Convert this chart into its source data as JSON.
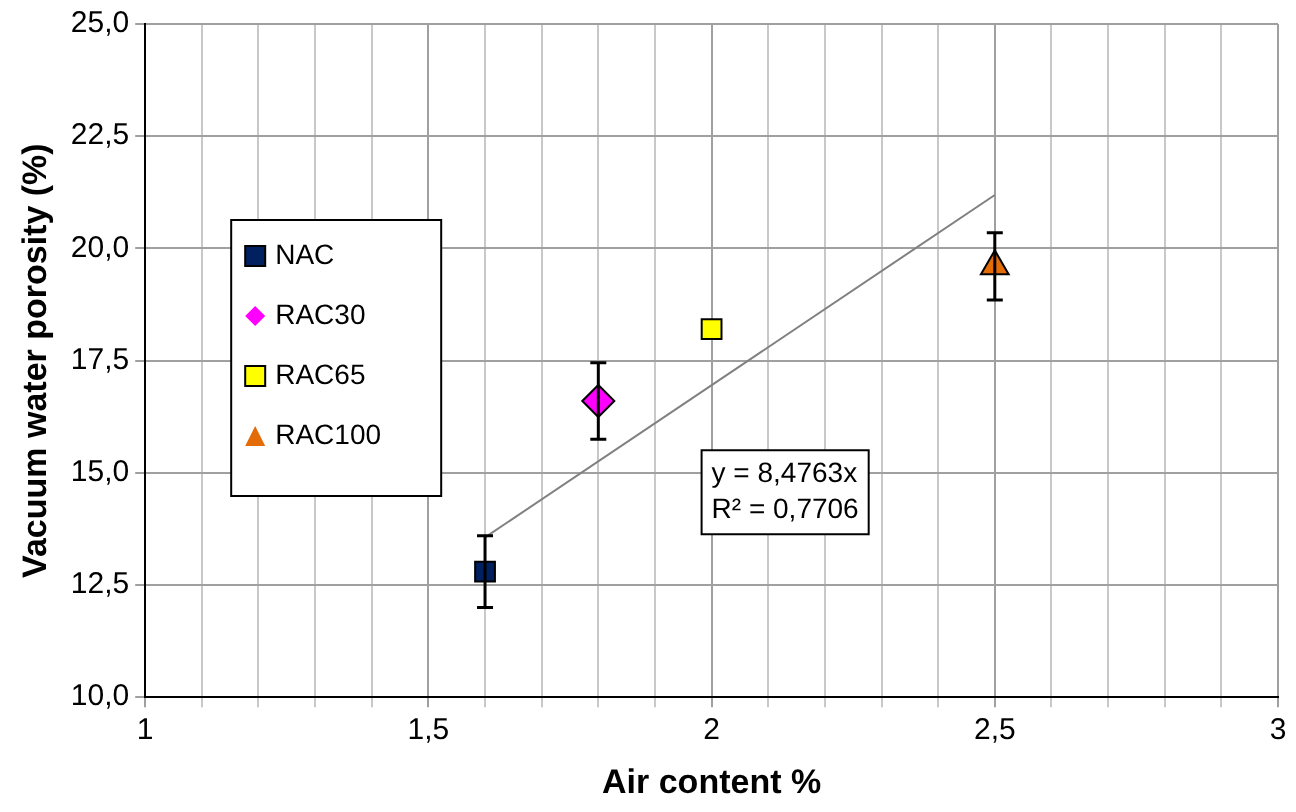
{
  "chart_data": {
    "type": "scatter",
    "xlabel": "Air content %",
    "ylabel": "Vacuum water porosity (%)",
    "xlim": [
      1,
      3
    ],
    "ylim": [
      10,
      25
    ],
    "xticks": [
      1,
      {
        "value": 1.1,
        "label": null
      },
      {
        "value": 1.2,
        "label": null
      },
      {
        "value": 1.3,
        "label": null
      },
      {
        "value": 1.4,
        "label": null
      },
      {
        "value": 1.5,
        "label": "1,5"
      },
      {
        "value": 1.6,
        "label": null
      },
      {
        "value": 1.7,
        "label": null
      },
      {
        "value": 1.8,
        "label": null
      },
      {
        "value": 1.9,
        "label": null
      },
      2,
      {
        "value": 2.1,
        "label": null
      },
      {
        "value": 2.2,
        "label": null
      },
      {
        "value": 2.3,
        "label": null
      },
      {
        "value": 2.4,
        "label": null
      },
      {
        "value": 2.5,
        "label": "2,5"
      },
      {
        "value": 2.6,
        "label": null
      },
      {
        "value": 2.7,
        "label": null
      },
      {
        "value": 2.8,
        "label": null
      },
      {
        "value": 2.9,
        "label": null
      },
      3
    ],
    "yticks": [
      {
        "value": 10,
        "label": "10,0"
      },
      {
        "value": 12.5,
        "label": "12,5"
      },
      {
        "value": 15,
        "label": "15,0"
      },
      {
        "value": 17.5,
        "label": "17,5"
      },
      {
        "value": 20,
        "label": "20,0"
      },
      {
        "value": 22.5,
        "label": "22,5"
      },
      {
        "value": 25,
        "label": "25,0"
      }
    ],
    "grid": true,
    "legend": "top left",
    "annotations": [
      "y = 8,4763x",
      "R² = 0,7706"
    ],
    "series": [
      {
        "name": "NAC",
        "color": "#002060",
        "marker": "square",
        "x": [
          1.6
        ],
        "values": [
          12.8
        ],
        "errors": [
          0.8
        ]
      },
      {
        "name": "RAC30",
        "color": "#ff00ff",
        "marker": "diamond",
        "x": [
          1.8
        ],
        "values": [
          16.6
        ],
        "errors": [
          0.85
        ]
      },
      {
        "name": "RAC65",
        "color": "#ffff00",
        "marker": "square",
        "x": [
          2.0
        ],
        "values": [
          18.2
        ]
      },
      {
        "name": "RAC100",
        "color": "#e36c09",
        "marker": "triangle",
        "x": [
          2.5
        ],
        "values": [
          19.6
        ],
        "errors": [
          0.75
        ]
      },
      {
        "type": "line",
        "color": "#808080",
        "x": [
          1.6,
          2.5
        ],
        "values": [
          13.56,
          21.19
        ],
        "marker": "none"
      }
    ]
  }
}
